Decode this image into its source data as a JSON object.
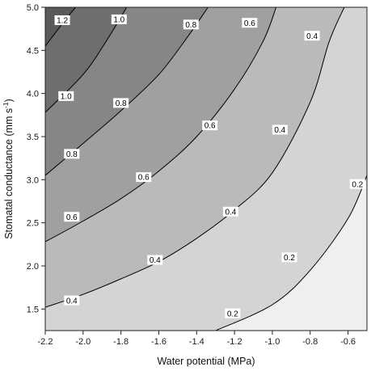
{
  "chart_data": {
    "type": "contour",
    "xlabel": "Water potential (MPa)",
    "ylabel_main": "Stomatal conductance (mm s",
    "ylabel_sup": "-1",
    "ylabel_close": ")",
    "xlim": [
      -2.2,
      -0.5
    ],
    "ylim": [
      1.25,
      5.0
    ],
    "x_ticks": [
      -2.2,
      -2.0,
      -1.8,
      -1.6,
      -1.4,
      -1.2,
      -1.0,
      -0.8,
      -0.6
    ],
    "x_tick_labels": [
      "-2.2",
      "-2.0",
      "-1.8",
      "-1.6",
      "-1.4",
      "-1.2",
      "-1.0",
      "-0.8",
      "-0.6"
    ],
    "y_ticks": [
      1.5,
      2.0,
      2.5,
      3.0,
      3.5,
      4.0,
      4.5,
      5.0
    ],
    "y_tick_labels": [
      "1.5",
      "2.0",
      "2.5",
      "3.0",
      "3.5",
      "4.0",
      "4.5",
      "5.0"
    ],
    "grid": false,
    "fills": [
      "#efefef",
      "#d4d4d4",
      "#bababa",
      "#a0a0a0",
      "#868686",
      "#6e6e6e",
      "#595959"
    ],
    "contours": [
      {
        "level": 0.2,
        "points": [
          [
            -1.3,
            1.25
          ],
          [
            -1.0,
            1.55
          ],
          [
            -0.8,
            1.95
          ],
          [
            -0.6,
            2.55
          ],
          [
            -0.5,
            3.05
          ]
        ],
        "labels": [
          {
            "text": "0.2",
            "x": -1.21,
            "y": 1.45
          },
          {
            "text": "0.2",
            "x": -0.91,
            "y": 2.1
          },
          {
            "text": "0.2",
            "x": -0.55,
            "y": 2.95
          }
        ]
      },
      {
        "level": 0.4,
        "points": [
          [
            -2.2,
            1.52
          ],
          [
            -2.0,
            1.67
          ],
          [
            -1.8,
            1.85
          ],
          [
            -1.6,
            2.05
          ],
          [
            -1.4,
            2.32
          ],
          [
            -1.2,
            2.65
          ],
          [
            -1.0,
            3.08
          ],
          [
            -0.8,
            3.9
          ],
          [
            -0.7,
            4.6
          ],
          [
            -0.62,
            5.0
          ]
        ],
        "labels": [
          {
            "text": "0.4",
            "x": -2.06,
            "y": 1.6
          },
          {
            "text": "0.4",
            "x": -1.62,
            "y": 2.07
          },
          {
            "text": "0.4",
            "x": -1.22,
            "y": 2.63
          },
          {
            "text": "0.4",
            "x": -0.96,
            "y": 3.58
          },
          {
            "text": "0.4",
            "x": -0.79,
            "y": 4.67
          }
        ]
      },
      {
        "level": 0.6,
        "points": [
          [
            -2.2,
            2.28
          ],
          [
            -2.0,
            2.52
          ],
          [
            -1.8,
            2.78
          ],
          [
            -1.6,
            3.1
          ],
          [
            -1.4,
            3.5
          ],
          [
            -1.2,
            4.05
          ],
          [
            -1.05,
            4.6
          ],
          [
            -0.98,
            5.0
          ]
        ],
        "labels": [
          {
            "text": "0.6",
            "x": -2.06,
            "y": 2.57
          },
          {
            "text": "0.6",
            "x": -1.68,
            "y": 3.03
          },
          {
            "text": "0.6",
            "x": -1.33,
            "y": 3.63
          },
          {
            "text": "0.6",
            "x": -1.12,
            "y": 4.82
          }
        ]
      },
      {
        "level": 0.8,
        "points": [
          [
            -2.2,
            3.05
          ],
          [
            -2.0,
            3.42
          ],
          [
            -1.8,
            3.8
          ],
          [
            -1.6,
            4.22
          ],
          [
            -1.45,
            4.65
          ],
          [
            -1.34,
            5.0
          ]
        ],
        "labels": [
          {
            "text": "0.8",
            "x": -2.06,
            "y": 3.3
          },
          {
            "text": "0.8",
            "x": -1.8,
            "y": 3.89
          },
          {
            "text": "0.8",
            "x": -1.43,
            "y": 4.8
          }
        ]
      },
      {
        "level": 1.0,
        "points": [
          [
            -2.2,
            3.78
          ],
          [
            -2.0,
            4.22
          ],
          [
            -1.88,
            4.6
          ],
          [
            -1.77,
            5.0
          ]
        ],
        "labels": [
          {
            "text": "1.0",
            "x": -2.09,
            "y": 3.97
          },
          {
            "text": "1.0",
            "x": -1.81,
            "y": 4.86
          }
        ]
      },
      {
        "level": 1.2,
        "points": [
          [
            -2.2,
            4.55
          ],
          [
            -2.12,
            4.78
          ],
          [
            -2.04,
            5.0
          ]
        ],
        "labels": [
          {
            "text": "1.2",
            "x": -2.11,
            "y": 4.85
          }
        ]
      }
    ]
  }
}
